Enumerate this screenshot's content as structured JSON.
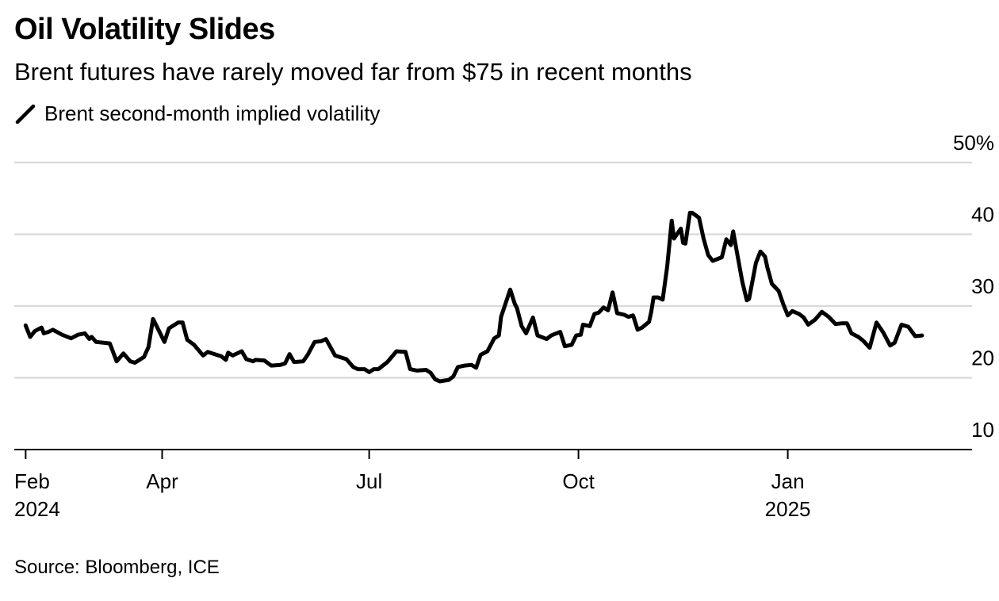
{
  "header": {
    "title": "Oil Volatility Slides",
    "subtitle": "Brent futures have rarely moved far from $75 in recent months"
  },
  "legend": {
    "label": "Brent second-month implied volatility"
  },
  "footer": {
    "source": "Source: Bloomberg, ICE"
  },
  "colors": {
    "line": "#000000",
    "grid": "#d9d9d9",
    "axis": "#000000"
  },
  "chart_data": {
    "type": "line",
    "title": "Oil Volatility Slides",
    "subtitle": "Brent futures have rarely moved far from $75 in recent months",
    "xlabel": "",
    "ylabel": "",
    "ylim": [
      10,
      50
    ],
    "y_ticks": [
      {
        "value": 50,
        "label": "50%"
      },
      {
        "value": 40,
        "label": "40"
      },
      {
        "value": 30,
        "label": "30"
      },
      {
        "value": 20,
        "label": "20"
      },
      {
        "value": 10,
        "label": "10"
      }
    ],
    "x_ticks": [
      {
        "date": "2024-02-01",
        "label": "Feb",
        "sublabel": "2024"
      },
      {
        "date": "2024-04-01",
        "label": "Apr",
        "sublabel": ""
      },
      {
        "date": "2024-07-01",
        "label": "Jul",
        "sublabel": ""
      },
      {
        "date": "2024-10-01",
        "label": "Oct",
        "sublabel": ""
      },
      {
        "date": "2025-01-01",
        "label": "Jan",
        "sublabel": "2025"
      }
    ],
    "xlim": [
      "2024-01-27",
      "2025-03-23"
    ],
    "grid": true,
    "legend_position": "top-left",
    "series": [
      {
        "name": "Brent second-month implied volatility",
        "color": "#000000",
        "points": [
          [
            "2024-02-01",
            27.3
          ],
          [
            "2024-02-03",
            25.7
          ],
          [
            "2024-02-05",
            26.5
          ],
          [
            "2024-02-08",
            27.0
          ],
          [
            "2024-02-09",
            26.2
          ],
          [
            "2024-02-11",
            26.4
          ],
          [
            "2024-02-13",
            26.7
          ],
          [
            "2024-02-17",
            26.0
          ],
          [
            "2024-02-21",
            25.5
          ],
          [
            "2024-02-24",
            26.0
          ],
          [
            "2024-02-27",
            26.2
          ],
          [
            "2024-02-29",
            25.4
          ],
          [
            "2024-03-01",
            25.7
          ],
          [
            "2024-03-03",
            25.0
          ],
          [
            "2024-03-09",
            24.8
          ],
          [
            "2024-03-12",
            22.3
          ],
          [
            "2024-03-15",
            23.4
          ],
          [
            "2024-03-18",
            22.3
          ],
          [
            "2024-03-20",
            22.1
          ],
          [
            "2024-03-24",
            22.9
          ],
          [
            "2024-03-26",
            24.3
          ],
          [
            "2024-03-28",
            28.2
          ],
          [
            "2024-03-31",
            26.3
          ],
          [
            "2024-04-02",
            25.0
          ],
          [
            "2024-04-04",
            26.9
          ],
          [
            "2024-04-08",
            27.7
          ],
          [
            "2024-04-10",
            27.7
          ],
          [
            "2024-04-12",
            25.3
          ],
          [
            "2024-04-15",
            24.6
          ],
          [
            "2024-04-19",
            23.1
          ],
          [
            "2024-04-21",
            23.6
          ],
          [
            "2024-04-27",
            23.0
          ],
          [
            "2024-04-29",
            22.5
          ],
          [
            "2024-04-30",
            23.5
          ],
          [
            "2024-05-02",
            23.1
          ],
          [
            "2024-05-06",
            23.7
          ],
          [
            "2024-05-08",
            22.6
          ],
          [
            "2024-05-11",
            22.3
          ],
          [
            "2024-05-12",
            22.5
          ],
          [
            "2024-05-16",
            22.4
          ],
          [
            "2024-05-19",
            21.7
          ],
          [
            "2024-05-23",
            21.8
          ],
          [
            "2024-05-25",
            22.0
          ],
          [
            "2024-05-27",
            23.3
          ],
          [
            "2024-05-29",
            22.2
          ],
          [
            "2024-06-02",
            22.3
          ],
          [
            "2024-06-04",
            23.2
          ],
          [
            "2024-06-07",
            25.0
          ],
          [
            "2024-06-10",
            25.1
          ],
          [
            "2024-06-12",
            25.4
          ],
          [
            "2024-06-16",
            23.1
          ],
          [
            "2024-06-21",
            22.6
          ],
          [
            "2024-06-24",
            21.5
          ],
          [
            "2024-06-26",
            21.2
          ],
          [
            "2024-06-29",
            21.2
          ],
          [
            "2024-07-01",
            20.8
          ],
          [
            "2024-07-03",
            21.2
          ],
          [
            "2024-07-05",
            21.2
          ],
          [
            "2024-07-09",
            22.2
          ],
          [
            "2024-07-13",
            23.7
          ],
          [
            "2024-07-17",
            23.6
          ],
          [
            "2024-07-19",
            21.2
          ],
          [
            "2024-07-22",
            21.0
          ],
          [
            "2024-07-26",
            21.1
          ],
          [
            "2024-07-28",
            20.7
          ],
          [
            "2024-07-30",
            19.8
          ],
          [
            "2024-08-01",
            19.5
          ],
          [
            "2024-08-05",
            19.7
          ],
          [
            "2024-08-07",
            20.2
          ],
          [
            "2024-08-09",
            21.5
          ],
          [
            "2024-08-12",
            21.7
          ],
          [
            "2024-08-15",
            21.8
          ],
          [
            "2024-08-17",
            21.4
          ],
          [
            "2024-08-19",
            23.2
          ],
          [
            "2024-08-22",
            23.7
          ],
          [
            "2024-08-25",
            25.5
          ],
          [
            "2024-08-27",
            25.9
          ],
          [
            "2024-08-28",
            28.5
          ],
          [
            "2024-09-01",
            32.3
          ],
          [
            "2024-09-03",
            30.3
          ],
          [
            "2024-09-04",
            29.7
          ],
          [
            "2024-09-06",
            27.2
          ],
          [
            "2024-09-08",
            26.2
          ],
          [
            "2024-09-11",
            28.4
          ],
          [
            "2024-09-13",
            25.9
          ],
          [
            "2024-09-17",
            25.4
          ],
          [
            "2024-09-19",
            25.9
          ],
          [
            "2024-09-23",
            26.4
          ],
          [
            "2024-09-25",
            24.4
          ],
          [
            "2024-09-28",
            24.6
          ],
          [
            "2024-09-30",
            25.9
          ],
          [
            "2024-10-02",
            26.0
          ],
          [
            "2024-10-03",
            27.4
          ],
          [
            "2024-10-06",
            27.2
          ],
          [
            "2024-10-08",
            28.9
          ],
          [
            "2024-10-10",
            29.1
          ],
          [
            "2024-10-12",
            29.8
          ],
          [
            "2024-10-14",
            29.4
          ],
          [
            "2024-10-16",
            31.9
          ],
          [
            "2024-10-18",
            29.0
          ],
          [
            "2024-10-21",
            28.8
          ],
          [
            "2024-10-23",
            28.5
          ],
          [
            "2024-10-25",
            28.7
          ],
          [
            "2024-10-27",
            26.7
          ],
          [
            "2024-10-29",
            27.0
          ],
          [
            "2024-11-01",
            27.8
          ],
          [
            "2024-11-02",
            29.2
          ],
          [
            "2024-11-03",
            31.2
          ],
          [
            "2024-11-05",
            31.2
          ],
          [
            "2024-11-07",
            30.9
          ],
          [
            "2024-11-09",
            35.5
          ],
          [
            "2024-11-11",
            41.9
          ],
          [
            "2024-11-12",
            39.4
          ],
          [
            "2024-11-15",
            40.8
          ],
          [
            "2024-11-16",
            38.8
          ],
          [
            "2024-11-17",
            38.7
          ],
          [
            "2024-11-19",
            43.0
          ],
          [
            "2024-11-20",
            43.0
          ],
          [
            "2024-11-23",
            42.3
          ],
          [
            "2024-11-25",
            39.4
          ],
          [
            "2024-11-27",
            37.1
          ],
          [
            "2024-11-29",
            36.3
          ],
          [
            "2024-12-03",
            36.8
          ],
          [
            "2024-12-05",
            39.3
          ],
          [
            "2024-12-07",
            38.5
          ],
          [
            "2024-12-08",
            40.4
          ],
          [
            "2024-12-12",
            33.4
          ],
          [
            "2024-12-14",
            30.8
          ],
          [
            "2024-12-15",
            31.0
          ],
          [
            "2024-12-18",
            36.0
          ],
          [
            "2024-12-20",
            37.6
          ],
          [
            "2024-12-22",
            36.9
          ],
          [
            "2024-12-23",
            35.4
          ],
          [
            "2024-12-25",
            33.1
          ],
          [
            "2024-12-28",
            32.1
          ],
          [
            "2024-12-30",
            30.3
          ],
          [
            "2025-01-01",
            28.7
          ],
          [
            "2025-01-03",
            29.3
          ],
          [
            "2025-01-06",
            28.9
          ],
          [
            "2025-01-08",
            28.4
          ],
          [
            "2025-01-10",
            27.4
          ],
          [
            "2025-01-13",
            28.1
          ],
          [
            "2025-01-16",
            29.2
          ],
          [
            "2025-01-19",
            28.5
          ],
          [
            "2025-01-22",
            27.5
          ],
          [
            "2025-01-25",
            27.6
          ],
          [
            "2025-01-27",
            27.6
          ],
          [
            "2025-01-29",
            26.2
          ],
          [
            "2025-02-01",
            25.7
          ],
          [
            "2025-02-03",
            25.2
          ],
          [
            "2025-02-06",
            24.2
          ],
          [
            "2025-02-09",
            27.7
          ],
          [
            "2025-02-12",
            26.3
          ],
          [
            "2025-02-15",
            24.5
          ],
          [
            "2025-02-17",
            24.9
          ],
          [
            "2025-02-20",
            27.4
          ],
          [
            "2025-02-23",
            27.1
          ],
          [
            "2025-02-26",
            25.8
          ],
          [
            "2025-03-01",
            25.9
          ]
        ]
      }
    ]
  }
}
